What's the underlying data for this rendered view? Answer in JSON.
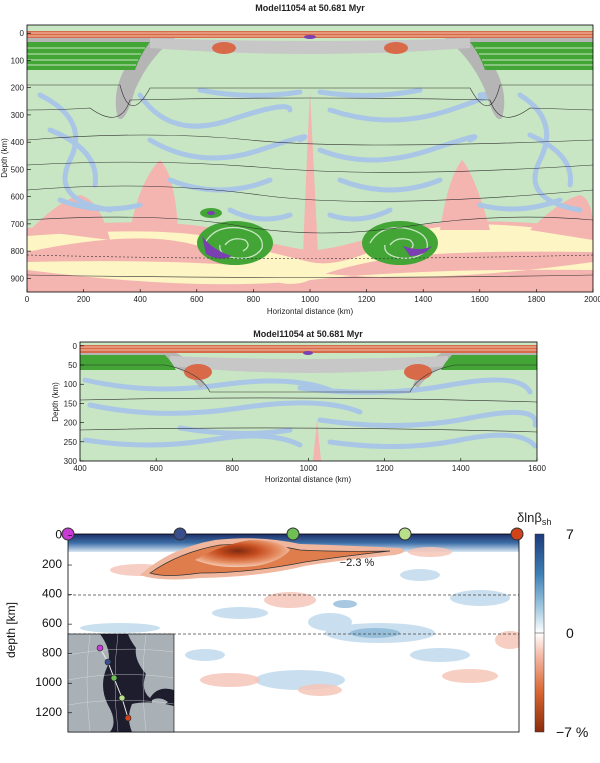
{
  "chart_data": [
    {
      "type": "heatmap",
      "title": "Model11054 at 50.681 Myr",
      "xlabel": "Horizontal distance (km)",
      "ylabel": "Depth (km)",
      "xlim": [
        0,
        2000
      ],
      "ylim": [
        950,
        -30
      ],
      "xticks": [
        "0",
        "200",
        "400",
        "600",
        "800",
        "1000",
        "1200",
        "1400",
        "1600",
        "1800",
        "2000"
      ],
      "yticks": [
        "0",
        "100",
        "200",
        "300",
        "400",
        "500",
        "600",
        "700",
        "800",
        "900"
      ],
      "colors": {
        "background": "#c8e6c3",
        "swirl": "#aac6e6",
        "hot": "#f4b4b0",
        "warm": "#fdf5c4",
        "crust": "#d86a4a",
        "sediment": "#43a536",
        "core": "#7a3fb0"
      }
    },
    {
      "type": "heatmap",
      "title": "Model11054 at 50.681 Myr",
      "xlabel": "Horizontal distance (km)",
      "ylabel": "Depth (km)",
      "xlim": [
        400,
        1600
      ],
      "ylim": [
        300,
        -10
      ],
      "xticks": [
        "400",
        "600",
        "800",
        "1000",
        "1200",
        "1400",
        "1600"
      ],
      "yticks": [
        "0",
        "50",
        "100",
        "150",
        "200",
        "250",
        "300"
      ]
    },
    {
      "type": "heatmap",
      "ylabel": "depth [km]",
      "ylim": [
        1330,
        -10
      ],
      "yticks": [
        "0",
        "200",
        "400",
        "600",
        "800",
        "1000",
        "1200"
      ],
      "colorbar": {
        "label": "δlnβ",
        "label_sub": "sh",
        "max": "7",
        "mid": "0",
        "min": "−7 %"
      },
      "contour_label": "−2.3 %",
      "station_colors": [
        "#c93bd6",
        "#3a4e8c",
        "#6fbf55",
        "#b8e08a",
        "#d1431b"
      ]
    }
  ]
}
